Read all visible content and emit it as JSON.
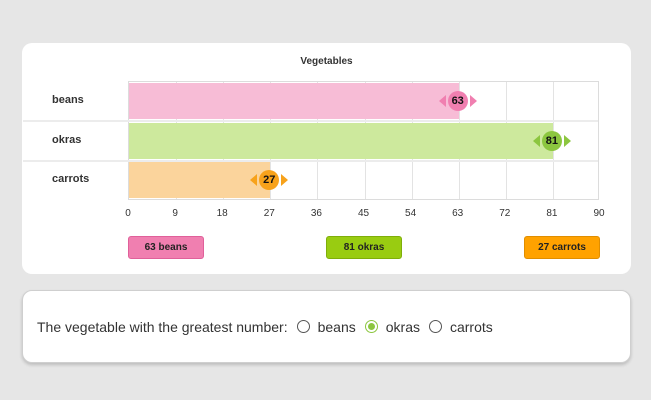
{
  "chart_data": {
    "type": "bar",
    "orientation": "horizontal",
    "title": "Vegetables",
    "categories": [
      "beans",
      "okras",
      "carrots"
    ],
    "values": [
      63,
      81,
      27
    ],
    "xlim": [
      0,
      90
    ],
    "ticks": [
      "0",
      "9",
      "18",
      "27",
      "36",
      "45",
      "54",
      "63",
      "72",
      "81",
      "90"
    ],
    "grid": true,
    "colors": {
      "beans": {
        "bar": "#f7bcd6",
        "marker": "#f07fb0",
        "button_bg": "#f07fb0",
        "button_border": "#e0609a"
      },
      "okras": {
        "bar": "#cde99d",
        "marker": "#8cc63f",
        "button_bg": "#99cc11",
        "button_border": "#7fae0a"
      },
      "carrots": {
        "bar": "#fbd49c",
        "marker": "#f7a21b",
        "button_bg": "#ffa200",
        "button_border": "#e08e00"
      }
    }
  },
  "labels": {
    "value_labels": [
      "63",
      "81",
      "27"
    ],
    "buttons": [
      "63 beans",
      "81 okras",
      "27 carrots"
    ]
  },
  "question": {
    "text": "The vegetable with the greatest number:",
    "options": [
      "beans",
      "okras",
      "carrots"
    ],
    "selected": "okras"
  }
}
